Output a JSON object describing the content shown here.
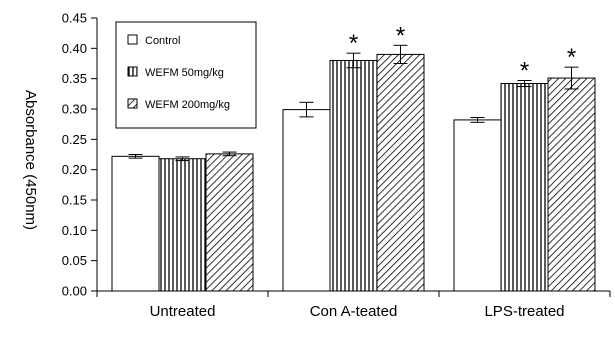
{
  "chart_data": {
    "type": "bar",
    "title": "",
    "xlabel": "",
    "ylabel": "Absorbance (450nm)",
    "ylim": [
      0,
      0.45
    ],
    "yticks": [
      "0.00",
      "0.05",
      "0.10",
      "0.15",
      "0.20",
      "0.25",
      "0.30",
      "0.35",
      "0.40",
      "0.45"
    ],
    "grid": false,
    "legend_position": "top-left",
    "categories": [
      "Untreated",
      "Con A-teated",
      "LPS-treated"
    ],
    "series": [
      {
        "name": "Control",
        "pattern": "open",
        "values": [
          0.222,
          0.299,
          0.282
        ],
        "errors": [
          0.003,
          0.012,
          0.004
        ],
        "significant": [
          false,
          false,
          false
        ]
      },
      {
        "name": "WEFM  50mg/kg",
        "pattern": "vertical-lines",
        "values": [
          0.218,
          0.38,
          0.342
        ],
        "errors": [
          0.003,
          0.012,
          0.005
        ],
        "significant": [
          false,
          true,
          true
        ]
      },
      {
        "name": "WEFM  200mg/kg",
        "pattern": "diagonal-lines",
        "values": [
          0.226,
          0.39,
          0.351
        ],
        "errors": [
          0.003,
          0.015,
          0.018
        ],
        "significant": [
          false,
          true,
          true
        ]
      }
    ],
    "significance_marker": "*"
  }
}
